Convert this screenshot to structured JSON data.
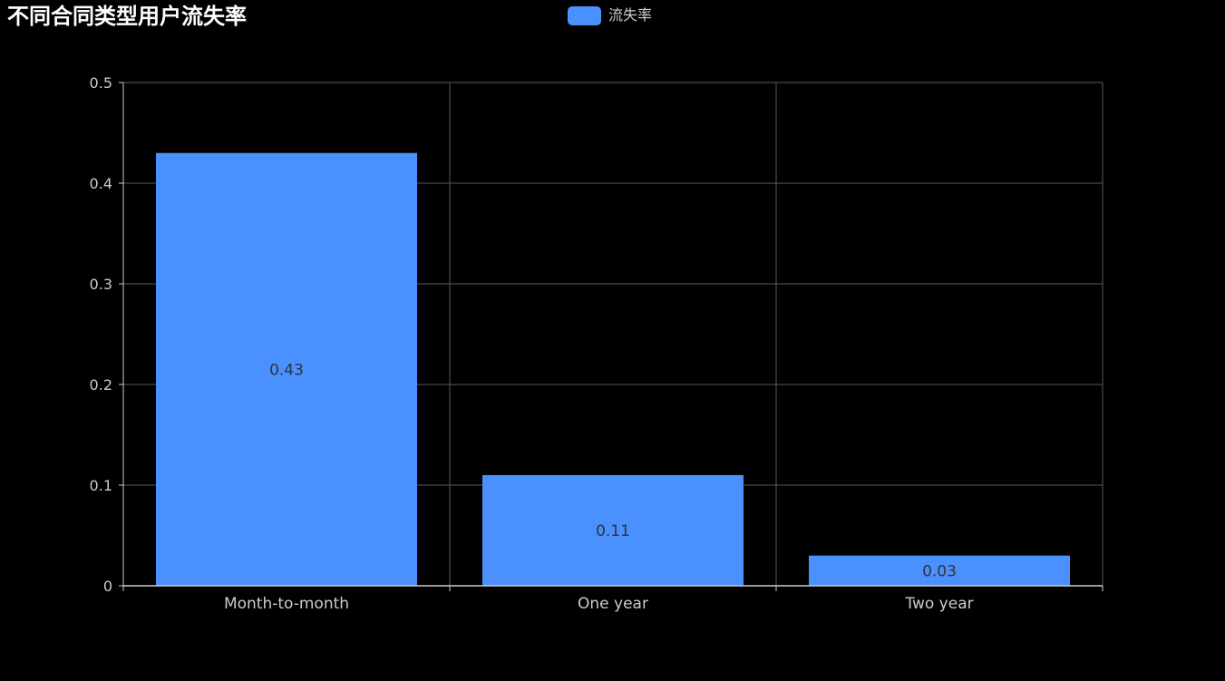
{
  "title": "不同合同类型用户流失率",
  "legend": {
    "label": "流失率"
  },
  "colors": {
    "background": "#000000",
    "bar": "#4a90ff",
    "grid": "#5a5a5a",
    "axis": "#cccccc",
    "tick_text": "#cccccc",
    "value_label": "#333333",
    "title": "#ffffff"
  },
  "chart_data": {
    "type": "bar",
    "title": "不同合同类型用户流失率",
    "categories": [
      "Month-to-month",
      "One year",
      "Two year"
    ],
    "series": [
      {
        "name": "流失率",
        "values": [
          0.43,
          0.11,
          0.03
        ],
        "value_labels": [
          "0.43",
          "0.11",
          "0.03"
        ]
      }
    ],
    "xlabel": "",
    "ylabel": "",
    "ylim": [
      0,
      0.5
    ],
    "yticks": [
      0,
      0.1,
      0.2,
      0.3,
      0.4,
      0.5
    ],
    "ytick_labels": [
      "0",
      "0.1",
      "0.2",
      "0.3",
      "0.4",
      "0.5"
    ],
    "grid": true,
    "legend_position": "top-center"
  }
}
